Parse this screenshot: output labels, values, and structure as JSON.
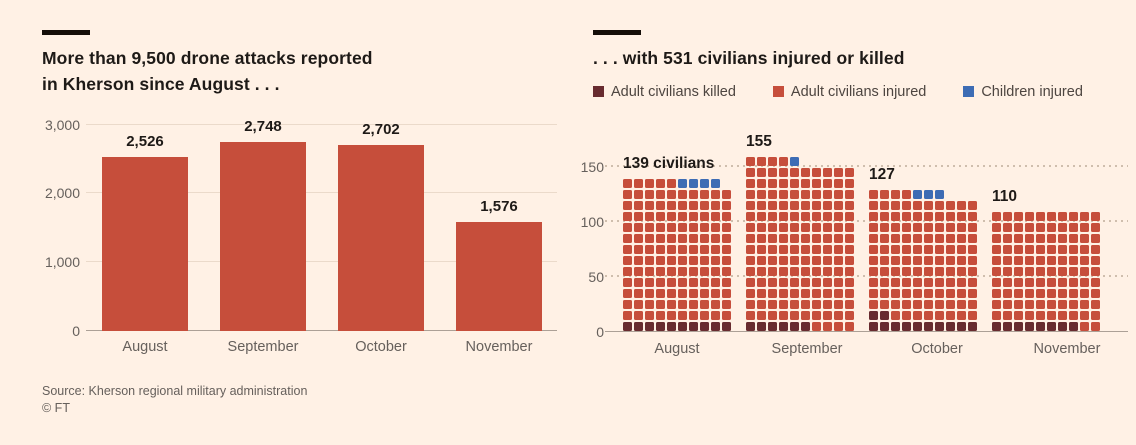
{
  "page": {
    "background": "#FFF1E5",
    "title_color": "#1E1A17",
    "muted_color": "#66605C"
  },
  "left_panel": {
    "title_line1": "More than 9,500 drone attacks reported",
    "title_line2": "in Kherson since August . . ."
  },
  "right_panel": {
    "title": ". . . with 531 civilians injured or killed"
  },
  "footer": {
    "source": "Source: Kherson regional military administration",
    "copyright": "© FT"
  },
  "chart_data": [
    {
      "type": "bar",
      "title": "More than 9,500 drone attacks reported in Kherson since August . . .",
      "categories": [
        "August",
        "September",
        "October",
        "November"
      ],
      "values": [
        2526,
        2748,
        2702,
        1576
      ],
      "value_labels": [
        "2,526",
        "2,748",
        "2,702",
        "1,576"
      ],
      "ylim": [
        0,
        3000
      ],
      "yticks": [
        0,
        1000,
        2000,
        3000
      ],
      "ytick_labels": [
        "0",
        "1,000",
        "2,000",
        "3,000"
      ],
      "grid": "horizontal-solid",
      "legend_position": "none",
      "bar_color": "#C64E3B"
    },
    {
      "type": "waffle",
      "title": ". . . with 531 civilians injured or killed",
      "total": 531,
      "units_per_row": 10,
      "categories": [
        "August",
        "September",
        "October",
        "November"
      ],
      "totals": [
        139,
        155,
        127,
        110
      ],
      "total_labels": [
        "139 civilians",
        "155",
        "127",
        "110"
      ],
      "series": [
        {
          "name": "Adult civilians killed",
          "color": "#682B2F",
          "values": [
            10,
            6,
            12,
            8
          ]
        },
        {
          "name": "Adult civilians injured",
          "color": "#C64E3B",
          "values": [
            125,
            148,
            112,
            102
          ]
        },
        {
          "name": "Children injured",
          "color": "#3D6CB4",
          "values": [
            4,
            1,
            3,
            0
          ]
        }
      ],
      "yticks": [
        0,
        50,
        100,
        150
      ],
      "ytick_labels": [
        "0",
        "50",
        "100",
        "150"
      ],
      "grid": "horizontal-dotted",
      "legend_position": "top"
    }
  ]
}
